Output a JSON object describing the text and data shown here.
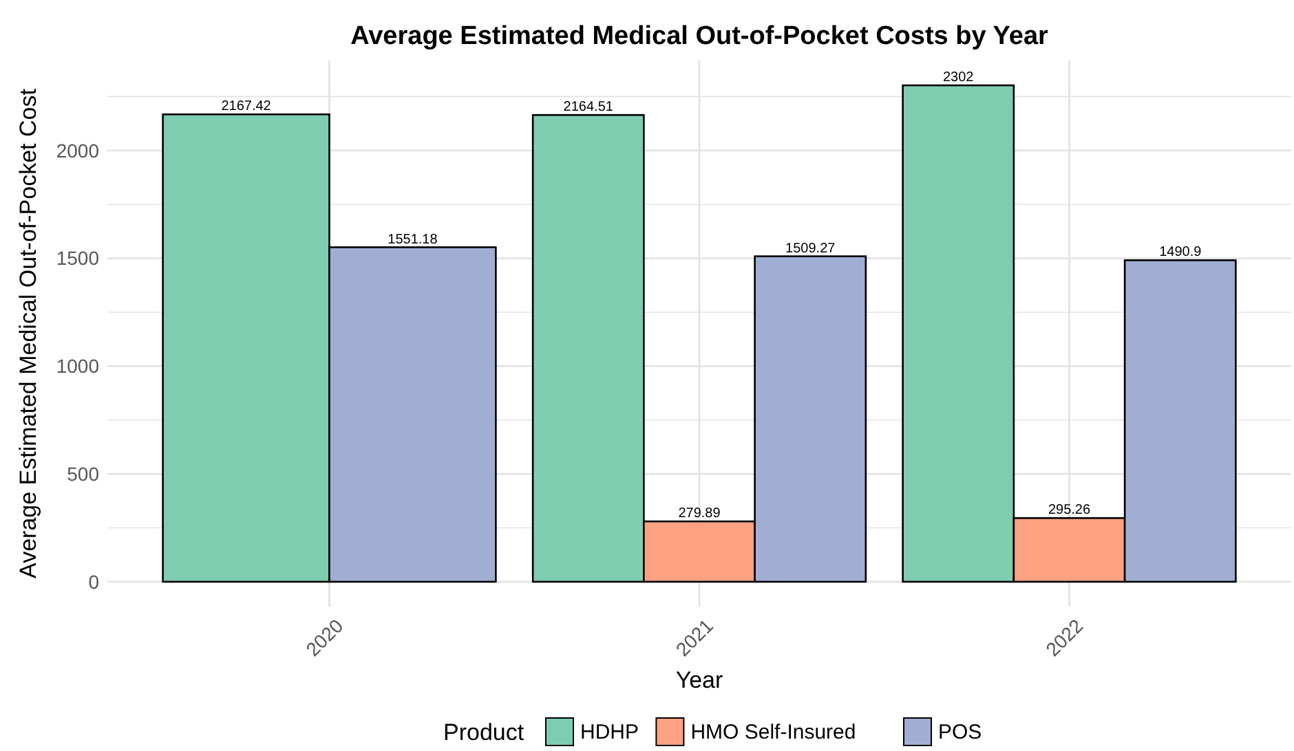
{
  "chart_data": {
    "type": "bar",
    "title": "Average Estimated Medical Out-of-Pocket Costs by Year",
    "xlabel": "Year",
    "ylabel": "Average Estimated Medical Out-of-Pocket Cost",
    "legend_title": "Product",
    "categories": [
      "2020",
      "2021",
      "2022"
    ],
    "series": [
      {
        "name": "HDHP",
        "color": "#7fcdb1",
        "values": [
          2167.42,
          2164.51,
          2302
        ]
      },
      {
        "name": "HMO Self-Insured",
        "color": "#fca283",
        "values": [
          null,
          279.89,
          295.26
        ]
      },
      {
        "name": "POS",
        "color": "#a0aed3",
        "values": [
          1551.18,
          1509.27,
          1490.9
        ]
      }
    ],
    "ylim": [
      -115.1,
      2417.1
    ],
    "yticks": [
      0,
      {
        "value": 250,
        "label": null
      },
      500,
      {
        "value": 750,
        "label": null
      },
      1000,
      {
        "value": 1250,
        "label": null
      },
      1500,
      {
        "value": 1750,
        "label": null
      },
      2000,
      {
        "value": 2250,
        "label": null
      }
    ],
    "grid": true,
    "legend": "bottom",
    "data_labels": true
  }
}
